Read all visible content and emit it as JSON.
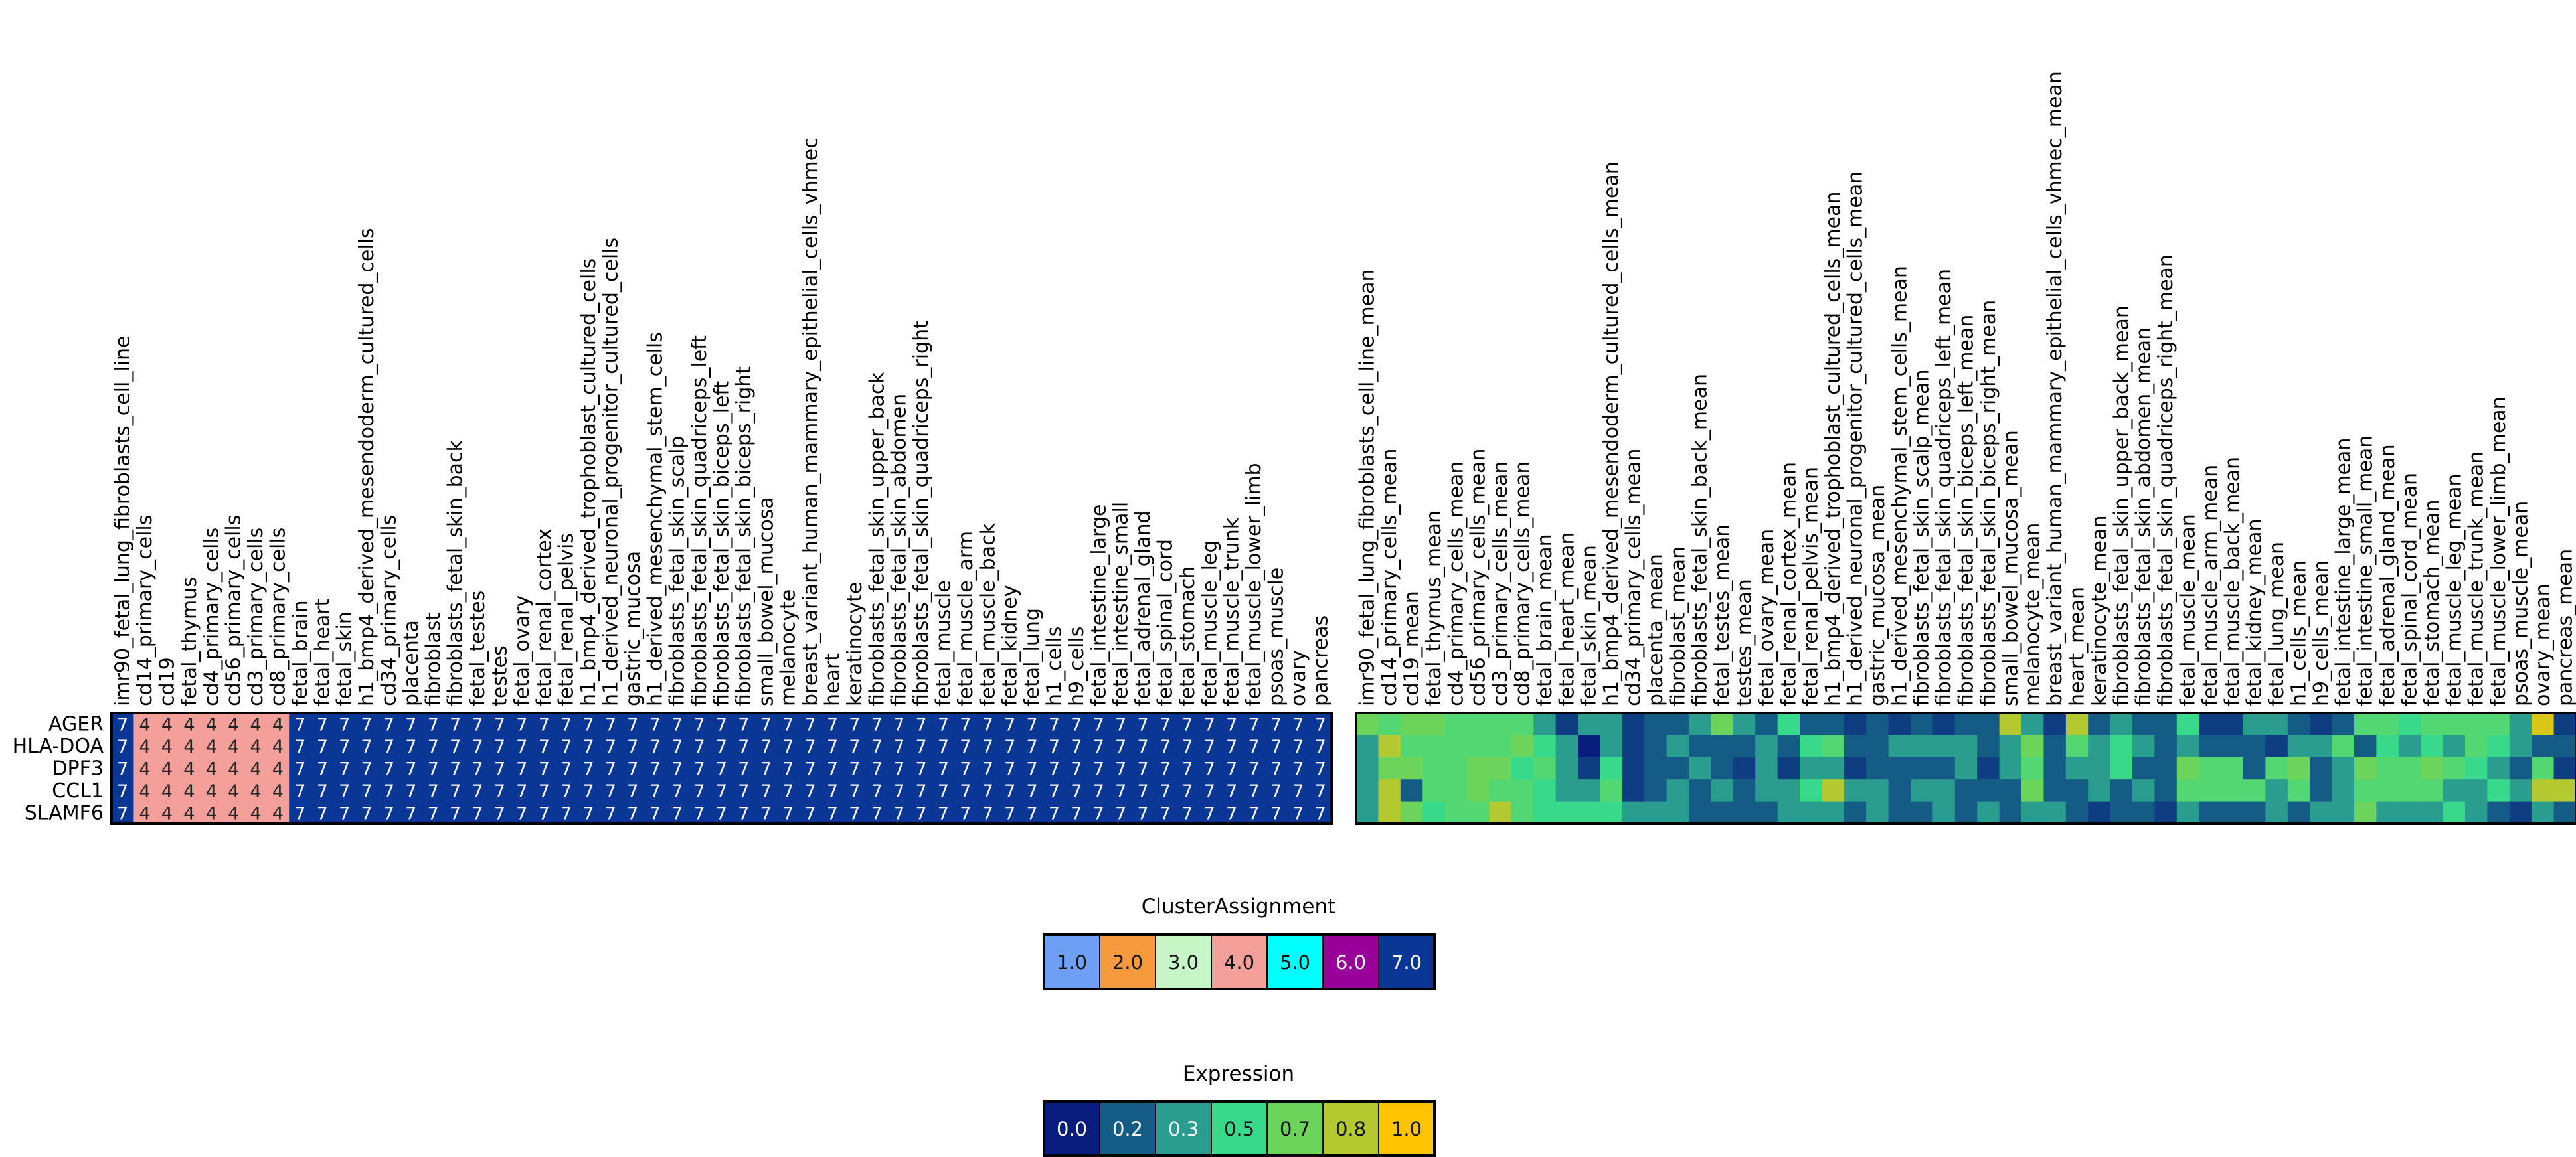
{
  "chart_data": [
    {
      "type": "heatmap",
      "name": "cluster_assignment",
      "rows": [
        "AGER",
        "HLA-DOA",
        "DPF3",
        "CCL1",
        "SLAMF6"
      ],
      "columns": [
        "imr90_fetal_lung_fibroblasts_cell_line",
        "cd14_primary_cells",
        "cd19",
        "fetal_thymus",
        "cd4_primary_cells",
        "cd56_primary_cells",
        "cd3_primary_cells",
        "cd8_primary_cells",
        "fetal_brain",
        "fetal_heart",
        "fetal_skin",
        "h1_bmp4_derived_mesendoderm_cultured_cells",
        "cd34_primary_cells",
        "placenta",
        "fibroblast",
        "fibroblasts_fetal_skin_back",
        "fetal_testes",
        "testes",
        "fetal_ovary",
        "fetal_renal_cortex",
        "fetal_renal_pelvis",
        "h1_bmp4_derived_trophoblast_cultured_cells",
        "h1_derived_neuronal_progenitor_cultured_cells",
        "gastric_mucosa",
        "h1_derived_mesenchymal_stem_cells",
        "fibroblasts_fetal_skin_scalp",
        "fibroblasts_fetal_skin_quadriceps_left",
        "fibroblasts_fetal_skin_biceps_left",
        "fibroblasts_fetal_skin_biceps_right",
        "small_bowel_mucosa",
        "melanocyte",
        "breast_variant_human_mammary_epithelial_cells_vhmec",
        "heart",
        "keratinocyte",
        "fibroblasts_fetal_skin_upper_back",
        "fibroblasts_fetal_skin_abdomen",
        "fibroblasts_fetal_skin_quadriceps_right",
        "fetal_muscle",
        "fetal_muscle_arm",
        "fetal_muscle_back",
        "fetal_kidney",
        "fetal_lung",
        "h1_cells",
        "h9_cells",
        "fetal_intestine_large",
        "fetal_intestine_small",
        "fetal_adrenal_gland",
        "fetal_spinal_cord",
        "fetal_stomach",
        "fetal_muscle_leg",
        "fetal_muscle_trunk",
        "fetal_muscle_lower_limb",
        "psoas_muscle",
        "ovary",
        "pancreas"
      ],
      "column_clusters": [
        7,
        4,
        4,
        4,
        4,
        4,
        4,
        4,
        7,
        7,
        7,
        7,
        7,
        7,
        7,
        7,
        7,
        7,
        7,
        7,
        7,
        7,
        7,
        7,
        7,
        7,
        7,
        7,
        7,
        7,
        7,
        7,
        7,
        7,
        7,
        7,
        7,
        7,
        7,
        7,
        7,
        7,
        7,
        7,
        7,
        7,
        7,
        7,
        7,
        7,
        7,
        7,
        7,
        7,
        7
      ],
      "cell_labels": "cluster number printed in every cell"
    },
    {
      "type": "heatmap",
      "name": "expression",
      "rows": [
        "AGER",
        "HLA-DOA",
        "DPF3",
        "CCL1",
        "SLAMF6"
      ],
      "columns": [
        "imr90_fetal_lung_fibroblasts_cell_line_mean",
        "cd14_primary_cells_mean",
        "cd19_mean",
        "fetal_thymus_mean",
        "cd4_primary_cells_mean",
        "cd56_primary_cells_mean",
        "cd3_primary_cells_mean",
        "cd8_primary_cells_mean",
        "fetal_brain_mean",
        "fetal_heart_mean",
        "fetal_skin_mean",
        "h1_bmp4_derived_mesendoderm_cultured_cells_mean",
        "cd34_primary_cells_mean",
        "placenta_mean",
        "fibroblast_mean",
        "fibroblasts_fetal_skin_back_mean",
        "fetal_testes_mean",
        "testes_mean",
        "fetal_ovary_mean",
        "fetal_renal_cortex_mean",
        "fetal_renal_pelvis_mean",
        "h1_bmp4_derived_trophoblast_cultured_cells_mean",
        "h1_derived_neuronal_progenitor_cultured_cells_mean",
        "gastric_mucosa_mean",
        "h1_derived_mesenchymal_stem_cells_mean",
        "fibroblasts_fetal_skin_scalp_mean",
        "fibroblasts_fetal_skin_quadriceps_left_mean",
        "fibroblasts_fetal_skin_biceps_left_mean",
        "fibroblasts_fetal_skin_biceps_right_mean",
        "small_bowel_mucosa_mean",
        "melanocyte_mean",
        "breast_variant_human_mammary_epithelial_cells_vhmec_mean",
        "heart_mean",
        "keratinocyte_mean",
        "fibroblasts_fetal_skin_upper_back_mean",
        "fibroblasts_fetal_skin_abdomen_mean",
        "fibroblasts_fetal_skin_quadriceps_right_mean",
        "fetal_muscle_mean",
        "fetal_muscle_arm_mean",
        "fetal_muscle_back_mean",
        "fetal_kidney_mean",
        "fetal_lung_mean",
        "h1_cells_mean",
        "h9_cells_mean",
        "fetal_intestine_large_mean",
        "fetal_intestine_small_mean",
        "fetal_adrenal_gland_mean",
        "fetal_spinal_cord_mean",
        "fetal_stomach_mean",
        "fetal_muscle_leg_mean",
        "fetal_muscle_trunk_mean",
        "fetal_muscle_lower_limb_mean",
        "psoas_muscle_mean",
        "ovary_mean",
        "pancreas_mean"
      ],
      "values": [
        [
          0.7,
          0.6,
          0.7,
          0.7,
          0.6,
          0.6,
          0.6,
          0.6,
          0.3,
          0.1,
          0.3,
          0.3,
          0.1,
          0.2,
          0.2,
          0.3,
          0.7,
          0.3,
          0.2,
          0.5,
          0.2,
          0.2,
          0.1,
          0.2,
          0.1,
          0.2,
          0.1,
          0.2,
          0.2,
          0.8,
          0.3,
          0.1,
          0.8,
          0.2,
          0.3,
          0.2,
          0.2,
          0.5,
          0.1,
          0.1,
          0.3,
          0.3,
          0.2,
          0.1,
          0.2,
          0.6,
          0.6,
          0.5,
          0.6,
          0.6,
          0.6,
          0.6,
          0.3,
          0.9,
          0.1
        ],
        [
          0.3,
          0.8,
          0.6,
          0.6,
          0.6,
          0.6,
          0.6,
          0.7,
          0.5,
          0.3,
          0.0,
          0.3,
          0.1,
          0.2,
          0.3,
          0.2,
          0.2,
          0.2,
          0.3,
          0.2,
          0.5,
          0.6,
          0.2,
          0.2,
          0.3,
          0.3,
          0.3,
          0.3,
          0.2,
          0.3,
          0.7,
          0.2,
          0.6,
          0.3,
          0.5,
          0.3,
          0.2,
          0.3,
          0.2,
          0.2,
          0.2,
          0.1,
          0.3,
          0.3,
          0.6,
          0.2,
          0.5,
          0.3,
          0.5,
          0.3,
          0.6,
          0.5,
          0.3,
          0.2,
          0.2
        ],
        [
          0.3,
          0.7,
          0.7,
          0.6,
          0.6,
          0.7,
          0.7,
          0.5,
          0.6,
          0.3,
          0.1,
          0.5,
          0.1,
          0.2,
          0.2,
          0.3,
          0.2,
          0.1,
          0.3,
          0.1,
          0.3,
          0.3,
          0.1,
          0.2,
          0.2,
          0.2,
          0.2,
          0.3,
          0.1,
          0.3,
          0.6,
          0.2,
          0.3,
          0.3,
          0.5,
          0.2,
          0.2,
          0.7,
          0.6,
          0.6,
          0.2,
          0.6,
          0.7,
          0.2,
          0.3,
          0.7,
          0.6,
          0.6,
          0.7,
          0.6,
          0.5,
          0.3,
          0.2,
          0.6,
          0.1
        ],
        [
          0.3,
          0.8,
          0.2,
          0.6,
          0.6,
          0.7,
          0.6,
          0.6,
          0.5,
          0.3,
          0.3,
          0.6,
          0.1,
          0.2,
          0.3,
          0.2,
          0.3,
          0.2,
          0.3,
          0.3,
          0.5,
          0.8,
          0.3,
          0.3,
          0.2,
          0.3,
          0.3,
          0.2,
          0.2,
          0.2,
          0.7,
          0.2,
          0.2,
          0.3,
          0.2,
          0.3,
          0.2,
          0.6,
          0.6,
          0.6,
          0.6,
          0.3,
          0.6,
          0.2,
          0.3,
          0.6,
          0.6,
          0.6,
          0.6,
          0.3,
          0.3,
          0.5,
          0.3,
          0.8,
          0.8
        ],
        [
          0.3,
          0.8,
          0.7,
          0.5,
          0.6,
          0.6,
          0.8,
          0.6,
          0.5,
          0.5,
          0.5,
          0.5,
          0.3,
          0.3,
          0.3,
          0.2,
          0.2,
          0.2,
          0.2,
          0.3,
          0.3,
          0.3,
          0.2,
          0.3,
          0.2,
          0.2,
          0.3,
          0.2,
          0.3,
          0.2,
          0.3,
          0.3,
          0.2,
          0.1,
          0.2,
          0.2,
          0.1,
          0.3,
          0.2,
          0.2,
          0.2,
          0.3,
          0.2,
          0.3,
          0.3,
          0.7,
          0.3,
          0.3,
          0.3,
          0.5,
          0.3,
          0.2,
          0.1,
          0.3,
          0.2
        ]
      ]
    }
  ],
  "legends": {
    "cluster": {
      "title": "ClusterAssignment",
      "items": [
        {
          "label": "1.0",
          "color": "#6f9ff5"
        },
        {
          "label": "2.0",
          "color": "#f79a3e"
        },
        {
          "label": "3.0",
          "color": "#c8f5c8"
        },
        {
          "label": "4.0",
          "color": "#f49f9a"
        },
        {
          "label": "5.0",
          "color": "#00ffff"
        },
        {
          "label": "6.0",
          "color": "#990099"
        },
        {
          "label": "7.0",
          "color": "#0a3796"
        }
      ]
    },
    "expression": {
      "title": "Expression",
      "items": [
        {
          "label": "0.0",
          "color": "#091d7e"
        },
        {
          "label": "0.2",
          "color": "#145c86"
        },
        {
          "label": "0.3",
          "color": "#2a9d8e"
        },
        {
          "label": "0.5",
          "color": "#38d98a"
        },
        {
          "label": "0.7",
          "color": "#6cd45a"
        },
        {
          "label": "0.8",
          "color": "#b4c92f"
        },
        {
          "label": "1.0",
          "color": "#ffc300"
        }
      ]
    }
  }
}
